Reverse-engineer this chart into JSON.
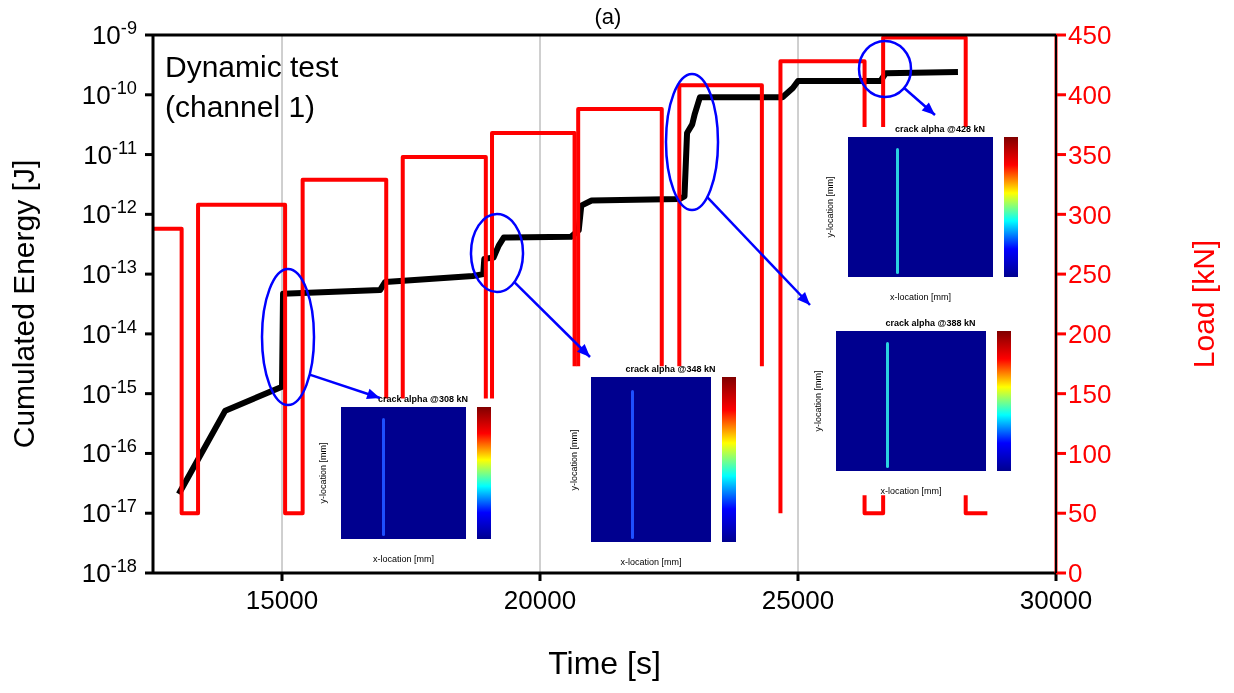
{
  "chart_data": {
    "type": "line",
    "title": "(a)",
    "xlabel": "Time [s]",
    "ylabel": "Cumulated Energy [J]",
    "y2label": "Load [kN]",
    "xlim": [
      12500,
      30000
    ],
    "xticks": [
      15000,
      20000,
      25000,
      30000
    ],
    "ylim": [
      1e-18,
      1e-09
    ],
    "log": "y",
    "yticks": [
      {
        "value": 1e-18,
        "label": "10$^{-18}$"
      },
      {
        "value": 1e-17,
        "label": "10$^{-17}$"
      },
      {
        "value": 1e-16,
        "label": "10$^{-16}$"
      },
      {
        "value": 1e-15,
        "label": "10$^{-15}$"
      },
      {
        "value": 1e-14,
        "label": "10$^{-14}$"
      },
      {
        "value": 1e-13,
        "label": "10$^{-13}$"
      },
      {
        "value": 1e-12,
        "label": "10$^{-12}$"
      },
      {
        "value": 1e-11,
        "label": "10$^{-11}$"
      },
      {
        "value": 1e-10,
        "label": "10$^{-10}$"
      },
      {
        "value": 1e-09,
        "label": "10$^{-9}$"
      }
    ],
    "y2lim": [
      0,
      450
    ],
    "y2ticks": [
      0,
      50,
      100,
      150,
      200,
      250,
      300,
      350,
      400,
      450
    ],
    "grid": true,
    "marker": "none",
    "line_style": "solid",
    "series": [
      {
        "color": "#000000",
        "x": [
          13000,
          13900,
          15000,
          15020,
          16900,
          17000,
          18700,
          18900,
          18920,
          19100,
          19200,
          19300,
          20600,
          20750,
          20800,
          21000,
          22700,
          22800,
          22850,
          22950,
          23000,
          23100,
          24700,
          24900,
          25000,
          26600,
          26700,
          28100
        ],
        "values": [
          2.1e-17,
          5.2e-16,
          1.3e-15,
          4.7e-14,
          5.4e-14,
          7.4e-14,
          9.3e-14,
          1e-13,
          1.8e-13,
          1.9e-13,
          3e-13,
          4.1e-13,
          4.2e-13,
          5.4e-13,
          1.4e-12,
          1.7e-12,
          1.8e-12,
          2e-12,
          2.3e-11,
          3.2e-11,
          4.8e-11,
          9.1e-11,
          9.1e-11,
          1.3e-10,
          1.7e-10,
          1.7e-10,
          2.3e-10,
          2.4e-10
        ]
      },
      {
        "axis": "y2",
        "color": "#ff0000",
        "x": [
          12500,
          13055,
          13055,
          13373,
          13373,
          15060,
          15060,
          15400,
          15400,
          17020,
          17020
        ],
        "values": [
          288,
          288,
          50,
          50,
          308,
          308,
          50,
          50,
          329,
          329,
          146
        ]
      },
      {
        "axis": "y2",
        "color": "#ff0000",
        "x": [
          17340,
          17340,
          18950,
          18950
        ],
        "values": [
          146,
          348,
          348,
          146
        ]
      },
      {
        "axis": "y2",
        "color": "#ff0000",
        "x": [
          19070,
          19070,
          20670,
          20670
        ],
        "values": [
          146,
          368,
          368,
          173
        ]
      },
      {
        "axis": "y2",
        "color": "#ff0000",
        "x": [
          20740,
          20740,
          22360,
          22360
        ],
        "values": [
          173,
          388,
          388,
          173
        ]
      },
      {
        "axis": "y2",
        "color": "#ff0000",
        "x": [
          22700,
          22700,
          24300,
          24300
        ],
        "values": [
          173,
          408,
          408,
          173
        ]
      },
      {
        "axis": "y2",
        "color": "#ff0000",
        "x": [
          24660,
          24660,
          26290,
          26290
        ],
        "values": [
          50,
          428,
          428,
          373
        ]
      },
      {
        "axis": "y2",
        "color": "#ff0000",
        "x": [
          26290,
          26290,
          26650,
          26650
        ],
        "values": [
          65,
          50,
          50,
          65
        ]
      },
      {
        "axis": "y2",
        "color": "#ff0000",
        "x": [
          26650,
          26650,
          28250,
          28250
        ],
        "values": [
          373,
          448,
          448,
          373
        ]
      },
      {
        "axis": "y2",
        "color": "#ff0000",
        "x": [
          28250,
          28250,
          28670
        ],
        "values": [
          65,
          50,
          50
        ]
      }
    ],
    "annotations": [
      "Dynamic test\n(channel 1)",
      "crack alpha @308 kN",
      "x-location [mm]",
      "y-location [mm]",
      "crack alpha @348 kN",
      "x-location [mm]",
      "y-location [mm]",
      "crack alpha @428 kN",
      "x-location [mm]",
      "y-location [mm]",
      "crack alpha @388 kN",
      "x-location [mm]",
      "y-location [mm]"
    ]
  }
}
